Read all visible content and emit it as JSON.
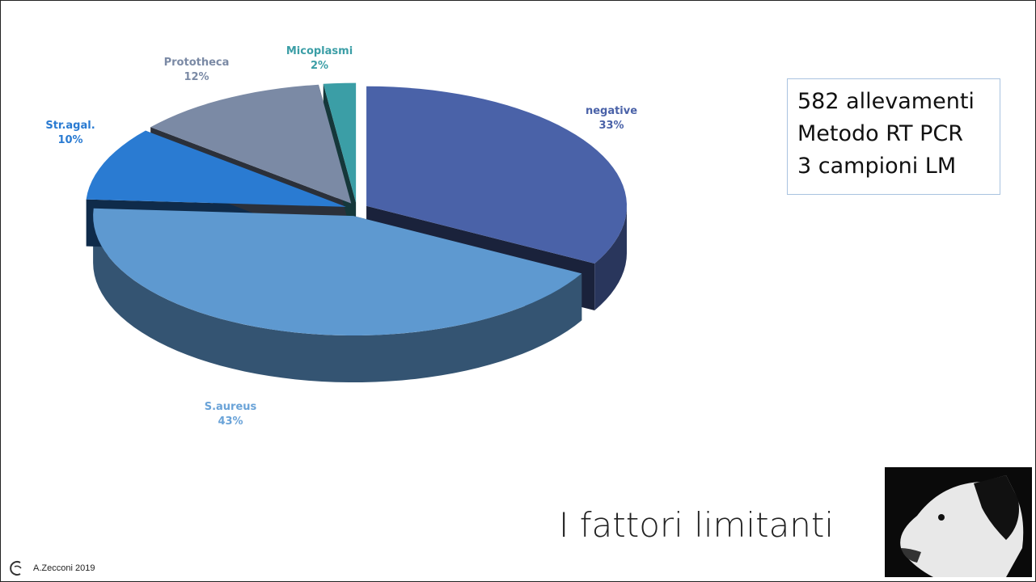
{
  "chart_data": {
    "type": "pie",
    "categories": [
      "negative",
      "S.aureus",
      "Str.agal.",
      "Prototheca",
      "Micoplasmi"
    ],
    "values": [
      33,
      43,
      10,
      12,
      2
    ],
    "value_labels": [
      "33%",
      "43%",
      "10%",
      "12%",
      "2%"
    ],
    "colors": [
      "#4a62a8",
      "#5e99d0",
      "#2a7bd2",
      "#7b8aa5",
      "#3b9ea6"
    ]
  },
  "note": [
    "582 allevamenti",
    "Metodo RT PCR",
    "3 campioni LM"
  ],
  "title": "I fattori limitanti",
  "footer": "A.Zecconi 2019"
}
